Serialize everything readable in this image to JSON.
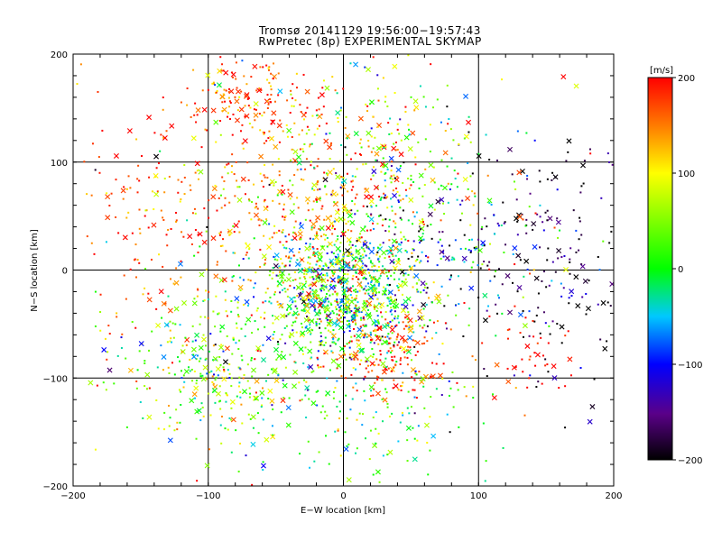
{
  "chart_data": {
    "type": "scatter",
    "title": "Tromsø 20141129 19:56:00−19:57:43",
    "subtitle": "RwPretec (8p) EXPERIMENTAL SKYMAP",
    "xlabel": "E−W location [km]",
    "ylabel": "N−S location [km]",
    "xlim": [
      -200,
      200
    ],
    "ylim": [
      -200,
      200
    ],
    "x_ticks": [
      -200,
      -100,
      0,
      100,
      200
    ],
    "y_ticks": [
      -200,
      -100,
      0,
      100,
      200
    ],
    "x_tick_labels": [
      "−200",
      "−100",
      "0",
      "100",
      "200"
    ],
    "y_tick_labels": [
      "−200",
      "−100",
      "0",
      "100",
      "200"
    ],
    "grid": true,
    "colorbar": {
      "label": "[m/s]",
      "range": [
        -200,
        200
      ],
      "ticks": [
        200,
        100,
        0,
        -100,
        -200
      ],
      "tick_labels": [
        "200",
        "100",
        "0",
        "−100",
        "−200"
      ],
      "colormap": "rainbow: black → purple → blue → cyan → green → yellow → orange → red"
    },
    "clusters": [
      {
        "cx": 0,
        "cy": -20,
        "sx": 30,
        "sy": 30,
        "n": 900,
        "vmean": 10,
        "vsd": 80
      },
      {
        "cx": -40,
        "cy": 60,
        "sx": 45,
        "sy": 50,
        "n": 420,
        "vmean": 150,
        "vsd": 55
      },
      {
        "cx": -70,
        "cy": 160,
        "sx": 25,
        "sy": 15,
        "n": 120,
        "vmean": 170,
        "vsd": 40
      },
      {
        "cx": 30,
        "cy": 110,
        "sx": 30,
        "sy": 50,
        "n": 200,
        "vmean": 70,
        "vsd": 80
      },
      {
        "cx": 150,
        "cy": 10,
        "sx": 35,
        "sy": 60,
        "n": 180,
        "vmean": -180,
        "vsd": 50
      },
      {
        "cx": -100,
        "cy": -80,
        "sx": 35,
        "sy": 35,
        "n": 220,
        "vmean": 60,
        "vsd": 70
      },
      {
        "cx": 30,
        "cy": -80,
        "sx": 20,
        "sy": 20,
        "n": 160,
        "vmean": 180,
        "vsd": 40
      },
      {
        "cx": -60,
        "cy": -120,
        "sx": 40,
        "sy": 30,
        "n": 120,
        "vmean": 20,
        "vsd": 60
      },
      {
        "cx": 30,
        "cy": -130,
        "sx": 40,
        "sy": 30,
        "n": 100,
        "vmean": 10,
        "vsd": 60
      },
      {
        "cx": 140,
        "cy": -80,
        "sx": 15,
        "sy": 25,
        "n": 40,
        "vmean": 190,
        "vsd": 20
      },
      {
        "cx": 60,
        "cy": 20,
        "sx": 40,
        "sy": 40,
        "n": 220,
        "vmean": -60,
        "vsd": 100
      },
      {
        "cx": -150,
        "cy": 60,
        "sx": 30,
        "sy": 60,
        "n": 120,
        "vmean": 180,
        "vsd": 40
      },
      {
        "cx": 0,
        "cy": 0,
        "sx": 110,
        "sy": 110,
        "n": 260,
        "vmean": 30,
        "vsd": 130
      }
    ]
  }
}
